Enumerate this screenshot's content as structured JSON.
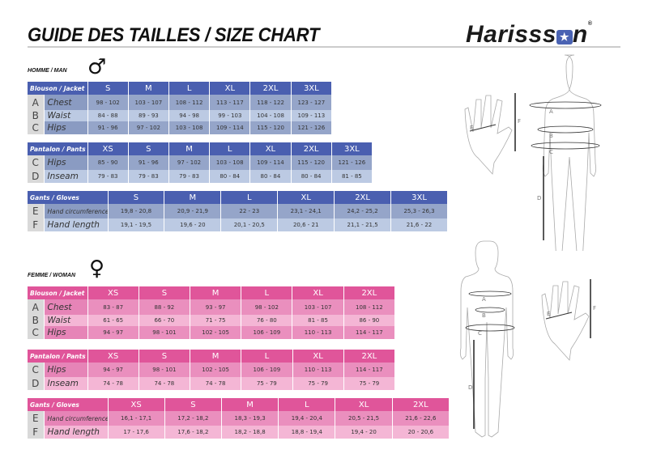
{
  "header": {
    "title": "GUIDE DES TAILLES / SIZE CHART",
    "brand_a": "Haris",
    "brand_star": "★",
    "brand_b": "n",
    "brand_reg": "®"
  },
  "men": {
    "section": "HOMME / MAN",
    "symbol": "♂",
    "tables": [
      {
        "id": "t-men-jacket",
        "caption": "Blouson / Jacket",
        "label_width": 54,
        "sizes": [
          "S",
          "M",
          "L",
          "XL",
          "2XL",
          "3XL"
        ],
        "rows": [
          {
            "letter": "A",
            "label": "Chest",
            "values": [
              "98 - 102",
              "103 - 107",
              "108 - 112",
              "113 - 117",
              "118 - 122",
              "123 - 127"
            ]
          },
          {
            "letter": "B",
            "label": "Waist",
            "values": [
              "84 - 88",
              "89 - 93",
              "94 - 98",
              "99 - 103",
              "104 - 108",
              "109 - 113"
            ]
          },
          {
            "letter": "C",
            "label": "Hips",
            "values": [
              "91 - 96",
              "97 - 102",
              "103 - 108",
              "109 - 114",
              "115 - 120",
              "121 - 126"
            ]
          }
        ]
      },
      {
        "id": "t-men-pants",
        "caption": "Pantalon / Pants",
        "label_width": 54,
        "sizes": [
          "XS",
          "S",
          "M",
          "L",
          "XL",
          "2XL",
          "3XL"
        ],
        "rows": [
          {
            "letter": "C",
            "label": "Hips",
            "values": [
              "85 - 90",
              "91 - 96",
              "97 - 102",
              "103 - 108",
              "109 - 114",
              "115 - 120",
              "121 - 126"
            ]
          },
          {
            "letter": "D",
            "label": "Inseam",
            "values": [
              "79 - 83",
              "79 - 83",
              "79 - 83",
              "80 - 84",
              "80 - 84",
              "80 - 84",
              "81 - 85"
            ]
          }
        ]
      },
      {
        "id": "t-men-gloves",
        "caption": "Gants / Gloves",
        "label_width": 79,
        "sizes": [
          "S",
          "M",
          "L",
          "XL",
          "2XL",
          "3XL"
        ],
        "rows": [
          {
            "letter": "E",
            "label": "Hand circumference",
            "small": true,
            "values": [
              "19,8 - 20,8",
              "20,9 - 21,9",
              "22 - 23",
              "23,1 - 24,1",
              "24,2 - 25,2",
              "25,3 - 26,3"
            ]
          },
          {
            "letter": "F",
            "label": "Hand length",
            "values": [
              "19,1 - 19,5",
              "19,6 - 20",
              "20,1 - 20,5",
              "20,6 - 21",
              "21,1 - 21,5",
              "21,6 - 22"
            ]
          }
        ]
      }
    ]
  },
  "women": {
    "section": "FEMME / WOMAN",
    "symbol": "♀",
    "tables": [
      {
        "id": "t-women-jacket",
        "caption": "Blouson / Jacket",
        "label_width": 54,
        "sizes": [
          "XS",
          "S",
          "M",
          "L",
          "XL",
          "2XL"
        ],
        "rows": [
          {
            "letter": "A",
            "label": "Chest",
            "values": [
              "83 - 87",
              "88 - 92",
              "93 - 97",
              "98 - 102",
              "103 - 107",
              "108 - 112"
            ]
          },
          {
            "letter": "B",
            "label": "Waist",
            "values": [
              "61 - 65",
              "66 - 70",
              "71 - 75",
              "76 - 80",
              "81 - 85",
              "86 - 90"
            ]
          },
          {
            "letter": "C",
            "label": "Hips",
            "values": [
              "94 - 97",
              "98 - 101",
              "102 - 105",
              "106 - 109",
              "110 - 113",
              "114 - 117"
            ]
          }
        ]
      },
      {
        "id": "t-women-pants",
        "caption": "Pantalon / Pants",
        "label_width": 54,
        "sizes": [
          "XS",
          "S",
          "M",
          "L",
          "XL",
          "2XL"
        ],
        "rows": [
          {
            "letter": "C",
            "label": "Hips",
            "values": [
              "94 - 97",
              "98 - 101",
              "102 - 105",
              "106 - 109",
              "110 - 113",
              "114 - 117"
            ]
          },
          {
            "letter": "D",
            "label": "Inseam",
            "values": [
              "74 - 78",
              "74 - 78",
              "74 - 78",
              "75 - 79",
              "75 - 79",
              "75 - 79"
            ]
          }
        ]
      },
      {
        "id": "t-women-gloves",
        "caption": "Gants / Gloves",
        "label_width": 79,
        "sizes": [
          "XS",
          "S",
          "M",
          "L",
          "XL",
          "2XL"
        ],
        "rows": [
          {
            "letter": "E",
            "label": "Hand circumference",
            "small": true,
            "values": [
              "16,1 - 17,1",
              "17,2 - 18,2",
              "18,3 - 19,3",
              "19,4 - 20,4",
              "20,5 - 21,5",
              "21,6 - 22,6"
            ]
          },
          {
            "letter": "F",
            "label": "Hand length",
            "values": [
              "17 - 17,6",
              "17,6 - 18,2",
              "18,2 - 18,8",
              "18,8 - 19,4",
              "19,4 - 20",
              "20 - 20,6"
            ]
          }
        ]
      }
    ]
  },
  "figure_labels": {
    "a": "A",
    "b": "B",
    "c": "C",
    "d": "D",
    "e": "E",
    "f": "F"
  },
  "colors": {
    "men_header": "#4a5fb0",
    "women_header": "#e0559a"
  }
}
